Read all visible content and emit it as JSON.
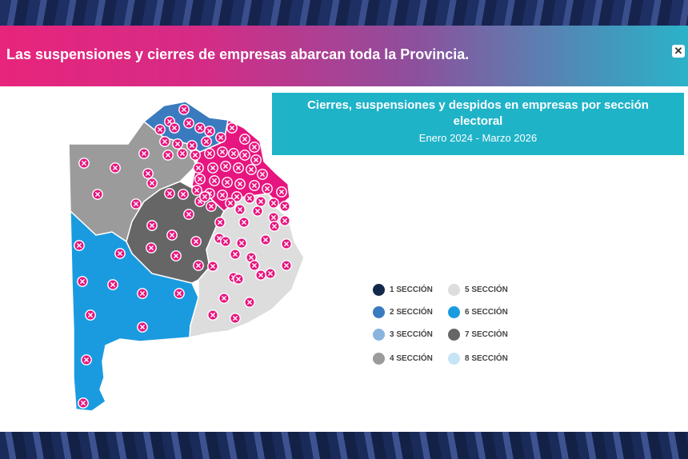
{
  "banner": {
    "title": "Las suspensiones y cierres de empresas abarcan toda la Provincia."
  },
  "info_box": {
    "title": "Cierres, suspensiones y despidos en empresas por sección electoral",
    "dates": "Enero 2024 - Marzo 2026"
  },
  "legend": [
    {
      "label": "1 SECCIÓN",
      "color": "#13294b"
    },
    {
      "label": "2 SECCIÓN",
      "color": "#3a7bbf"
    },
    {
      "label": "3 SECCIÓN",
      "color": "#8ab4de"
    },
    {
      "label": "4 SECCIÓN",
      "color": "#9b9b9b"
    },
    {
      "label": "5 SECCIÓN",
      "color": "#dddddd"
    },
    {
      "label": "6 SECCIÓN",
      "color": "#1a9be0"
    },
    {
      "label": "7 SECCIÓN",
      "color": "#666666"
    },
    {
      "label": "8 SECCIÓN",
      "color": "#c6e4f6"
    }
  ],
  "colors": {
    "marker": "#e6157f",
    "marker_stroke": "#ffffff"
  }
}
